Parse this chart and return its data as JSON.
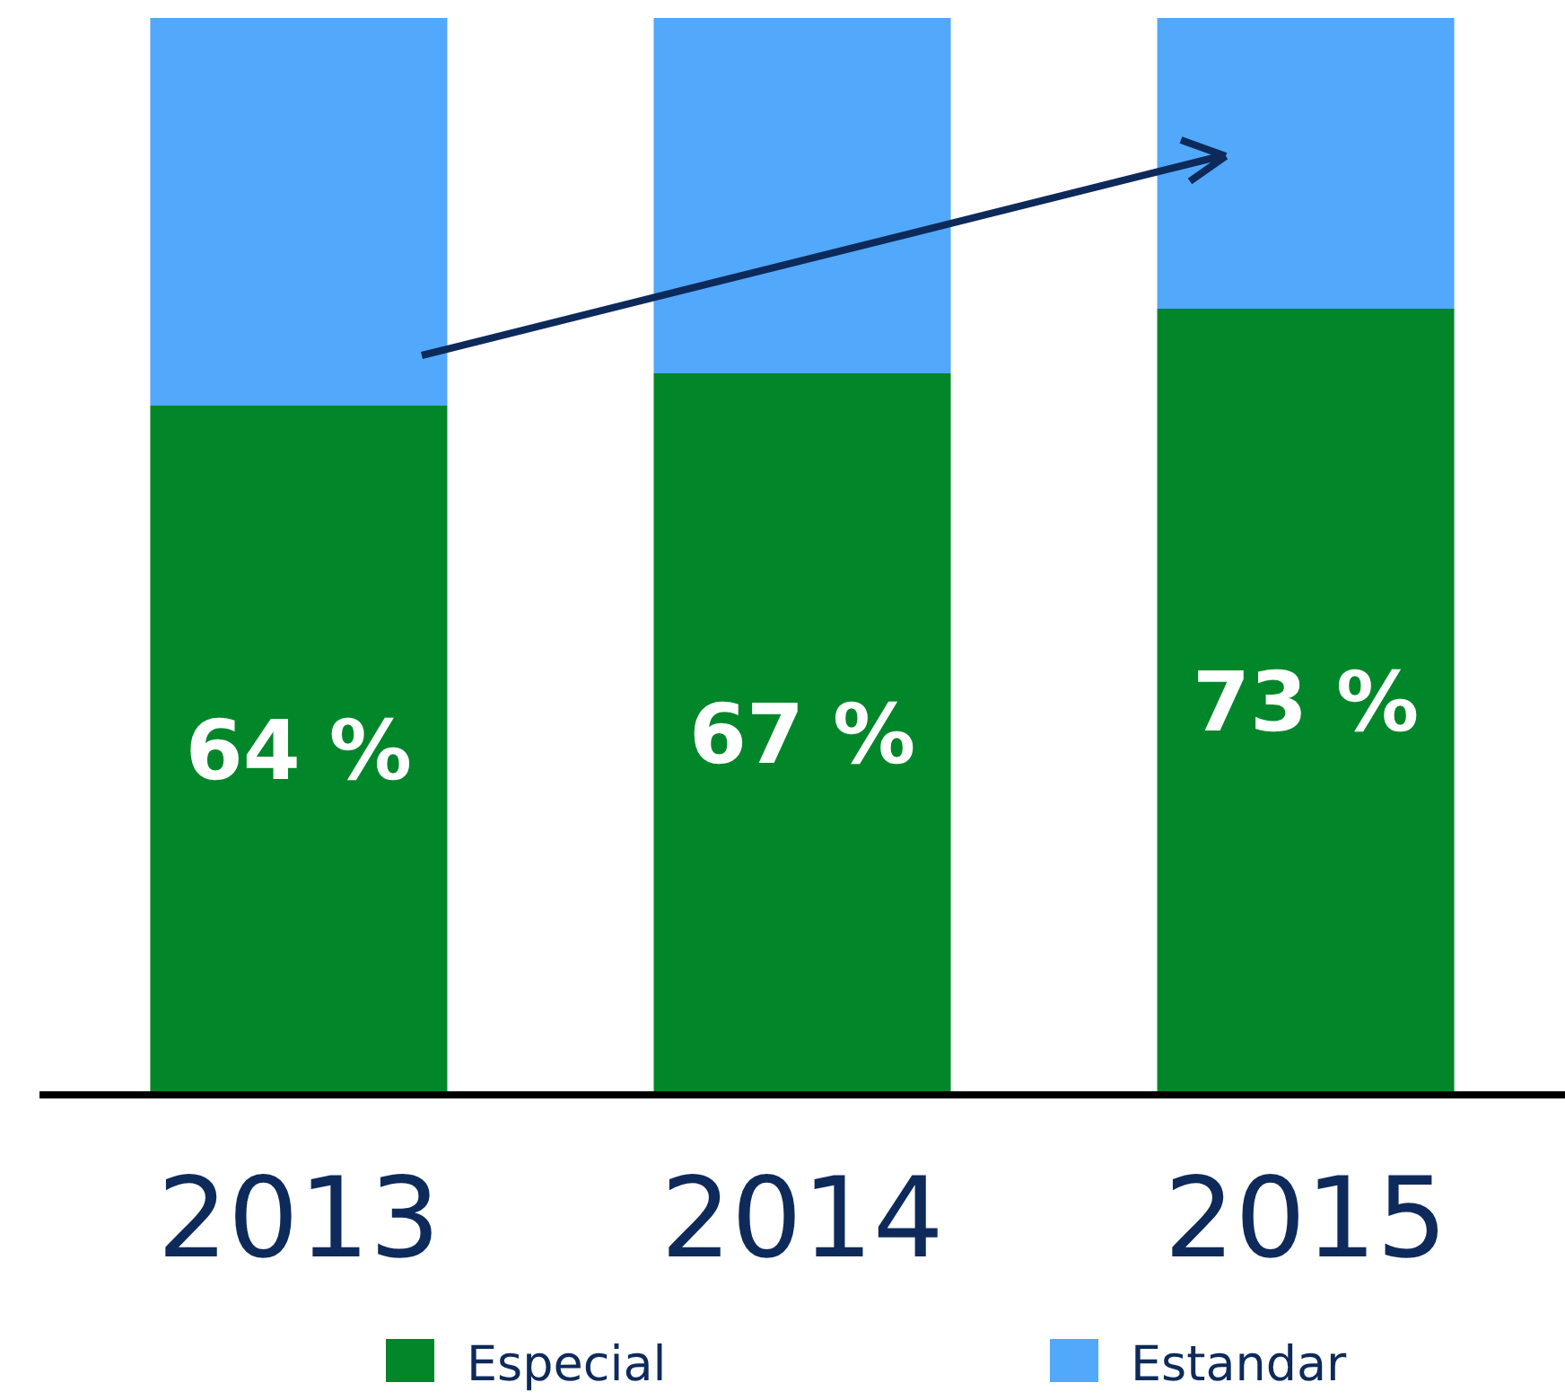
{
  "chart_data": {
    "type": "bar",
    "stacked": true,
    "categories": [
      "2013",
      "2014",
      "2015"
    ],
    "series": [
      {
        "name": "Especial",
        "color": "#02862a",
        "values": [
          64,
          67,
          73
        ],
        "value_labels": [
          "64 %",
          "67 %",
          "73 %"
        ]
      },
      {
        "name": "Estandar",
        "color": "#52a8fa",
        "values": [
          36,
          33,
          27
        ]
      }
    ],
    "ylim": [
      0,
      100
    ],
    "tick_labels": "x",
    "legend": "bottom"
  }
}
